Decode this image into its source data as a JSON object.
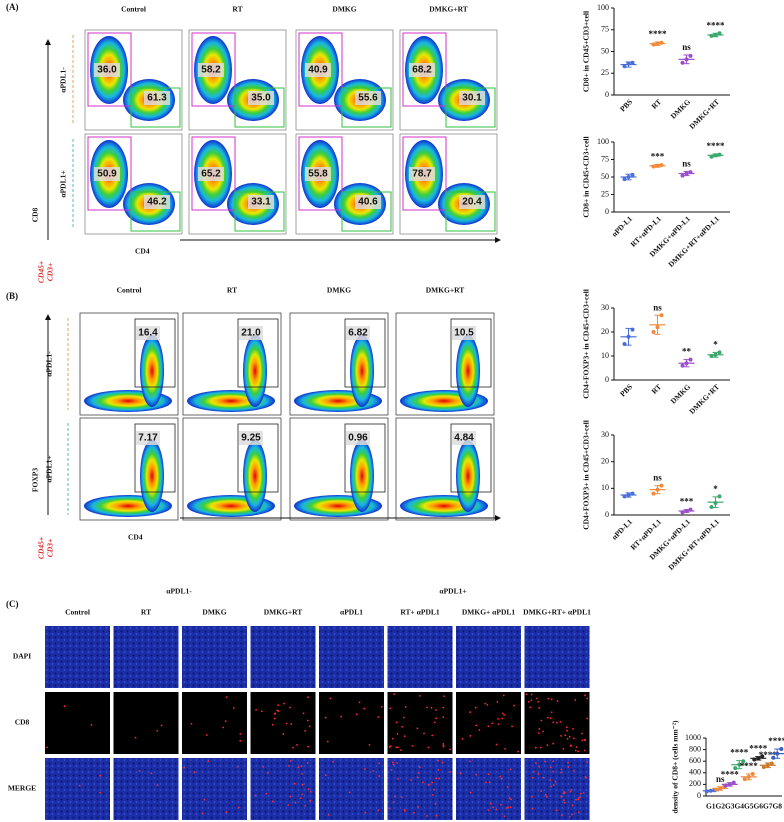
{
  "panel_a": {
    "label": "(A)",
    "columns": [
      "Control",
      "RT",
      "DMKG",
      "DMKG+RT"
    ],
    "rows": [
      "αPDL1-",
      "αPDL1+"
    ],
    "y_axis": "CD8",
    "x_axis": "CD4",
    "gate_population": [
      "CD45+",
      "CD3+"
    ],
    "gates": [
      [
        [
          "36.0",
          "61.3"
        ],
        [
          "58.2",
          "35.0"
        ],
        [
          "40.9",
          "55.6"
        ],
        [
          "68.2",
          "30.1"
        ]
      ],
      [
        [
          "50.9",
          "46.2"
        ],
        [
          "65.2",
          "33.1"
        ],
        [
          "55.8",
          "40.6"
        ],
        [
          "78.7",
          "20.4"
        ]
      ]
    ]
  },
  "panel_b": {
    "label": "(B)",
    "columns": [
      "Control",
      "RT",
      "DMKG",
      "DMKG+RT"
    ],
    "rows": [
      "αPDL1-",
      "αPDL1+"
    ],
    "y_axis": "FOXP3",
    "x_axis": "CD4",
    "gate_population": [
      "CD45+",
      "CD3+"
    ],
    "gates": [
      [
        "16.4",
        "21.0",
        "6.82",
        "10.5"
      ],
      [
        "7.17",
        "9.25",
        "0.96",
        "4.84"
      ]
    ]
  },
  "panel_c": {
    "label": "(C)",
    "groups": [
      "αPDL1-",
      "αPDL1+"
    ],
    "columns": [
      "Control",
      "RT",
      "DMKG",
      "DMKG+RT",
      "αPDL1",
      "RT+ αPDL1",
      "DMKG+ αPDL1",
      "DMKG+RT+ αPDL1"
    ],
    "rows": [
      "DAPI",
      "CD8",
      "MERGE"
    ]
  },
  "chart_data": [
    {
      "type": "dotplot",
      "ylabel": "CD8+ in CD45+CD3+cell",
      "categories": [
        "PBS",
        "RT",
        "DMKG",
        "DMKG+RT"
      ],
      "values": [
        35,
        59,
        41,
        69
      ],
      "errors": [
        3,
        2,
        5,
        2
      ],
      "points": [
        [
          33,
          36,
          37
        ],
        [
          58,
          59,
          60
        ],
        [
          37,
          41,
          45
        ],
        [
          68,
          69,
          71
        ]
      ],
      "colors": [
        "#4a6fd8",
        "#f08a3c",
        "#9b4fc8",
        "#3aa86b"
      ],
      "annotations": [
        null,
        "****",
        "ns",
        "****"
      ],
      "ylim": [
        0,
        100
      ],
      "yticks": [
        0,
        25,
        50,
        75,
        100
      ]
    },
    {
      "type": "dotplot",
      "ylabel": "CD8+ in CD45+CD3+cell",
      "categories": [
        "αPD-L1",
        "RT+αPD-L1",
        "DMKG+αPD-L1",
        "DMKG+RT+αPD-L1"
      ],
      "values": [
        50,
        66,
        55,
        81
      ],
      "errors": [
        4,
        2,
        3,
        2
      ],
      "points": [
        [
          47,
          50,
          53
        ],
        [
          65,
          66,
          67
        ],
        [
          52,
          55,
          57
        ],
        [
          79,
          81,
          82
        ]
      ],
      "colors": [
        "#4a6fd8",
        "#f08a3c",
        "#9b4fc8",
        "#3aa86b"
      ],
      "annotations": [
        null,
        "***",
        "ns",
        "****"
      ],
      "ylim": [
        0,
        100
      ],
      "yticks": [
        0,
        25,
        50,
        75,
        100
      ]
    },
    {
      "type": "dotplot",
      "ylabel": "CD4+FOXP3+ in CD45+CD3+cell",
      "categories": [
        "PBS",
        "RT",
        "DMKG",
        "DMKG+RT"
      ],
      "values": [
        18,
        23,
        7,
        10.5
      ],
      "errors": [
        3.5,
        4,
        1.5,
        1
      ],
      "points": [
        [
          15,
          18,
          21
        ],
        [
          20,
          22,
          27
        ],
        [
          6,
          7,
          8.5
        ],
        [
          10,
          10.5,
          11.5
        ]
      ],
      "colors": [
        "#4a6fd8",
        "#f08a3c",
        "#9b4fc8",
        "#3aa86b"
      ],
      "annotations": [
        null,
        "ns",
        "**",
        "*"
      ],
      "ylim": [
        0,
        30
      ],
      "yticks": [
        0,
        10,
        20,
        30
      ]
    },
    {
      "type": "dotplot",
      "ylabel": "CD4+FOXP3+ in CD45+CD3+cell",
      "categories": [
        "αPD-L1",
        "RT+αPD-L1",
        "DMKG+αPD-L1",
        "DMKG+RT+αPD-L1"
      ],
      "values": [
        7.5,
        9.5,
        1.5,
        4.8
      ],
      "errors": [
        0.8,
        1.5,
        0.5,
        2
      ],
      "points": [
        [
          7,
          7.5,
          8
        ],
        [
          8,
          9.5,
          11
        ],
        [
          1,
          1.5,
          2
        ],
        [
          3,
          4.5,
          7
        ]
      ],
      "colors": [
        "#4a6fd8",
        "#f08a3c",
        "#9b4fc8",
        "#3aa86b"
      ],
      "annotations": [
        null,
        "ns",
        "***",
        "*"
      ],
      "ylim": [
        0,
        30
      ],
      "yticks": [
        0,
        10,
        20,
        30
      ]
    },
    {
      "type": "dotplot",
      "ylabel": "density of CD8+ (cells mm⁻²)",
      "categories": [
        "G1",
        "G2",
        "G3",
        "G4",
        "G5",
        "G6",
        "G7",
        "G8"
      ],
      "values": [
        90,
        130,
        200,
        540,
        330,
        650,
        530,
        730
      ],
      "errors": [
        10,
        30,
        30,
        70,
        50,
        30,
        40,
        80
      ],
      "points": [
        [
          80,
          90,
          100
        ],
        [
          110,
          130,
          160
        ],
        [
          180,
          200,
          230
        ],
        [
          480,
          540,
          600
        ],
        [
          290,
          330,
          380
        ],
        [
          630,
          650,
          680
        ],
        [
          500,
          530,
          560
        ],
        [
          660,
          730,
          810
        ]
      ],
      "colors": [
        "#4a6fd8",
        "#f08a3c",
        "#9b4fc8",
        "#3aa86b",
        "#f08a3c",
        "#222222",
        "#c8782a",
        "#3a5ec0"
      ],
      "annotations": [
        null,
        "ns",
        "****",
        "****",
        "****",
        "****",
        "****",
        "****"
      ],
      "ylim": [
        0,
        1000
      ],
      "yticks": [
        0,
        200,
        400,
        600,
        800,
        1000
      ]
    }
  ]
}
